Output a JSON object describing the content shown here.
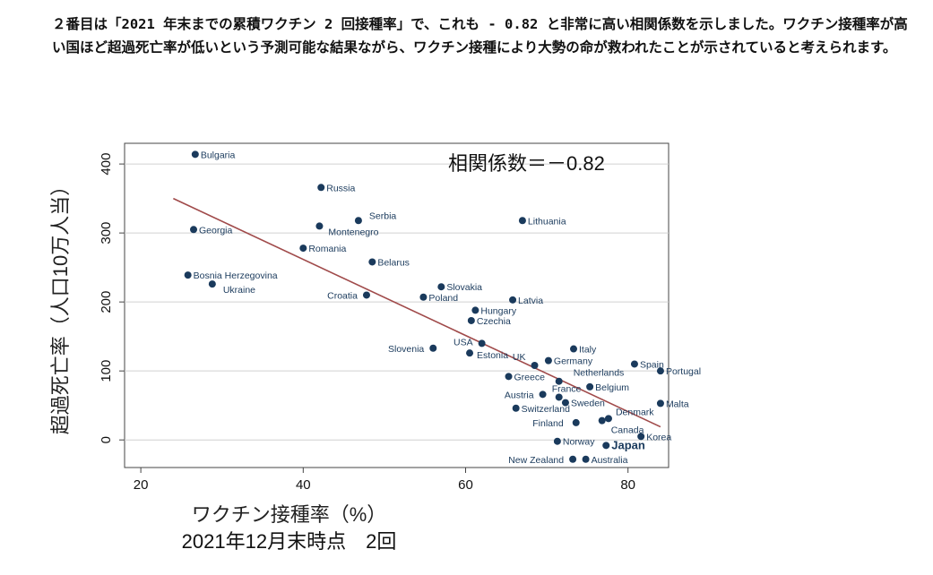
{
  "paragraph": {
    "text": "２番目は「2021 年末までの累積ワクチン 2 回接種率」で、これも - 0.82 と非常に高い相関係数を示しました。ワクチン接種率が高い国ほど超過死亡率が低いという予測可能な結果ながら、ワクチン接種により大勢の命が救われたことが示されていると考えられます。"
  },
  "chart_data": {
    "type": "scatter",
    "annotation": "相関係数＝－0.82",
    "xlabel": "ワクチン接種率（%）",
    "xlabel2": "2021年12月末時点　2回",
    "ylabel": "超過死亡率（人口10万人当）",
    "xlim": [
      18,
      85
    ],
    "ylim": [
      -40,
      430
    ],
    "xticks": [
      20,
      40,
      60,
      80
    ],
    "yticks": [
      0,
      100,
      200,
      300,
      400
    ],
    "grid": "horizontal",
    "marker_color": "#1a3a5c",
    "trendline_color": "#a04a4a",
    "trendline": {
      "x": [
        24,
        84
      ],
      "y": [
        350,
        19
      ]
    },
    "points": [
      {
        "label": "Bulgaria",
        "x": 26.7,
        "y": 414
      },
      {
        "label": "Russia",
        "x": 42.2,
        "y": 366
      },
      {
        "label": "Serbia",
        "x": 46.8,
        "y": 318
      },
      {
        "label": "Montenegro",
        "x": 42.0,
        "y": 310
      },
      {
        "label": "Georgia",
        "x": 26.5,
        "y": 305
      },
      {
        "label": "Lithuania",
        "x": 67.0,
        "y": 318
      },
      {
        "label": "Romania",
        "x": 40.0,
        "y": 278
      },
      {
        "label": "Belarus",
        "x": 48.5,
        "y": 258
      },
      {
        "label": "Bosnia Herzegovina",
        "x": 25.8,
        "y": 239
      },
      {
        "label": "Ukraine",
        "x": 28.8,
        "y": 226
      },
      {
        "label": "Slovakia",
        "x": 57.0,
        "y": 222
      },
      {
        "label": "Croatia",
        "x": 47.8,
        "y": 210
      },
      {
        "label": "Poland",
        "x": 54.8,
        "y": 207
      },
      {
        "label": "Latvia",
        "x": 65.8,
        "y": 203
      },
      {
        "label": "Hungary",
        "x": 61.2,
        "y": 188
      },
      {
        "label": "Czechia",
        "x": 60.7,
        "y": 173
      },
      {
        "label": "USA",
        "x": 62.0,
        "y": 140
      },
      {
        "label": "Slovenia",
        "x": 56.0,
        "y": 133
      },
      {
        "label": "Estonia",
        "x": 60.5,
        "y": 126
      },
      {
        "label": "Italy",
        "x": 73.3,
        "y": 132
      },
      {
        "label": "UK",
        "x": 68.5,
        "y": 108
      },
      {
        "label": "Germany",
        "x": 70.2,
        "y": 115
      },
      {
        "label": "Spain",
        "x": 80.8,
        "y": 110
      },
      {
        "label": "Portugal",
        "x": 84.0,
        "y": 100
      },
      {
        "label": "Greece",
        "x": 65.3,
        "y": 92
      },
      {
        "label": "Netherlands",
        "x": 71.5,
        "y": 85
      },
      {
        "label": "Belgium",
        "x": 75.3,
        "y": 77
      },
      {
        "label": "Austria",
        "x": 69.5,
        "y": 66
      },
      {
        "label": "France",
        "x": 71.5,
        "y": 62
      },
      {
        "label": "Sweden",
        "x": 72.3,
        "y": 54
      },
      {
        "label": "Malta",
        "x": 84.0,
        "y": 53
      },
      {
        "label": "Switzerland",
        "x": 66.2,
        "y": 46
      },
      {
        "label": "Denmark",
        "x": 77.6,
        "y": 31
      },
      {
        "label": "Finland",
        "x": 73.6,
        "y": 25
      },
      {
        "label": "Canada",
        "x": 76.8,
        "y": 28
      },
      {
        "label": "Korea",
        "x": 81.6,
        "y": 5
      },
      {
        "label": "Norway",
        "x": 71.3,
        "y": -2
      },
      {
        "label": "Japan",
        "x": 77.3,
        "y": -8
      },
      {
        "label": "New Zealand",
        "x": 73.2,
        "y": -28
      },
      {
        "label": "Australia",
        "x": 74.8,
        "y": -28
      }
    ]
  }
}
